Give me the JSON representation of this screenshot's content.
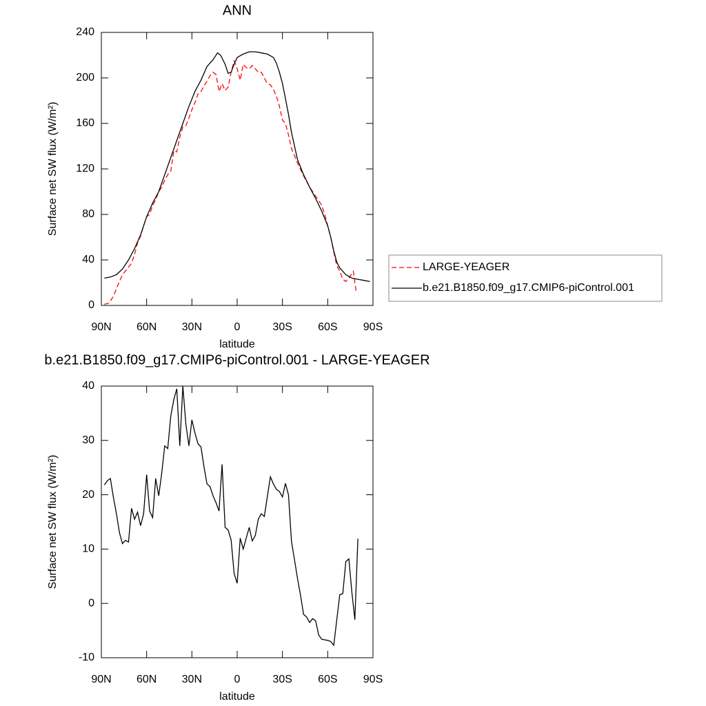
{
  "chart_data": [
    {
      "type": "line",
      "title": "ANN",
      "x_label": "latitude",
      "y_label": "Surface net SW flux (W/m²)",
      "xlim": [
        90,
        -90
      ],
      "ylim": [
        0,
        240
      ],
      "xticks": [
        {
          "value": 90,
          "label": "90N"
        },
        {
          "value": 60,
          "label": "60N"
        },
        {
          "value": 30,
          "label": "30N"
        },
        0,
        {
          "value": -30,
          "label": "30S"
        },
        {
          "value": -60,
          "label": "60S"
        },
        {
          "value": -90,
          "label": "90S"
        }
      ],
      "yticks": [
        0,
        40,
        80,
        120,
        160,
        200,
        240
      ],
      "legend": "right",
      "series": [
        {
          "name": "LARGE-YEAGER",
          "color": "#ff0000",
          "style": "dashed",
          "x": [
            88,
            85,
            82,
            79,
            76,
            73,
            70,
            68,
            66,
            64,
            62,
            60,
            58,
            56,
            54,
            52,
            50,
            48,
            46,
            44,
            42,
            40,
            38,
            36,
            34,
            32,
            30,
            28,
            26,
            24,
            22,
            20,
            18,
            16,
            14,
            12,
            10,
            8,
            6,
            4,
            2,
            0,
            -2,
            -4,
            -6,
            -8,
            -10,
            -12,
            -14,
            -16,
            -18,
            -20,
            -22,
            -24,
            -26,
            -28,
            -30,
            -32,
            -34,
            -36,
            -40,
            -44,
            -48,
            -52,
            -56,
            -58,
            -60,
            -62,
            -64,
            -66,
            -68,
            -70,
            -72,
            -74,
            -76,
            -77,
            -78,
            -79
          ],
          "values": [
            1,
            2,
            8,
            18,
            27,
            32,
            37,
            45,
            55,
            61,
            70,
            78,
            80,
            88,
            93,
            100,
            104,
            110,
            115,
            118,
            136,
            135,
            148,
            157,
            158,
            165,
            172,
            178,
            186,
            188,
            193,
            197,
            202,
            205,
            203,
            188,
            195,
            189,
            192,
            205,
            215,
            208,
            198,
            212,
            209,
            208,
            211,
            208,
            205,
            205,
            200,
            195,
            194,
            190,
            184,
            175,
            163,
            160,
            150,
            138,
            125,
            114,
            104,
            96,
            88,
            80,
            70,
            60,
            47,
            35,
            30,
            23,
            21,
            24,
            28,
            30,
            20,
            11
          ]
        },
        {
          "name": "b.e21.B1850.f09_g17.CMIP6-piControl.001",
          "color": "#000000",
          "style": "solid",
          "x": [
            88,
            84,
            80,
            76,
            72,
            68,
            64,
            60,
            56,
            52,
            48,
            44,
            40,
            36,
            32,
            28,
            24,
            20,
            16,
            13,
            11,
            8,
            6,
            4,
            2,
            0,
            -4,
            -8,
            -12,
            -16,
            -20,
            -24,
            -26,
            -28,
            -30,
            -32,
            -34,
            -36,
            -38,
            -40,
            -44,
            -48,
            -52,
            -56,
            -60,
            -62,
            -64,
            -66,
            -68,
            -72,
            -76,
            -80,
            -84,
            -88
          ],
          "values": [
            24,
            25,
            27,
            32,
            40,
            50,
            62,
            78,
            90,
            100,
            115,
            130,
            145,
            160,
            175,
            188,
            198,
            210,
            216,
            222,
            220,
            212,
            204,
            205,
            212,
            218,
            221,
            223,
            223,
            222,
            221,
            218,
            213,
            205,
            195,
            182,
            168,
            152,
            140,
            128,
            115,
            104,
            94,
            83,
            70,
            60,
            48,
            38,
            33,
            27,
            24,
            23,
            22,
            21
          ]
        }
      ]
    },
    {
      "type": "line",
      "title": "b.e21.B1850.f09_g17.CMIP6-piControl.001 - LARGE-YEAGER",
      "x_label": "latitude",
      "y_label": "Surface net SW flux (W/m²)",
      "xlim": [
        90,
        -90
      ],
      "ylim": [
        -10,
        40
      ],
      "xticks": [
        {
          "value": 90,
          "label": "90N"
        },
        {
          "value": 60,
          "label": "60N"
        },
        {
          "value": 30,
          "label": "30N"
        },
        0,
        {
          "value": -30,
          "label": "30S"
        },
        {
          "value": -60,
          "label": "60S"
        },
        {
          "value": -90,
          "label": "90S"
        }
      ],
      "yticks": [
        -10,
        0,
        10,
        20,
        30,
        40
      ],
      "series": [
        {
          "color": "#000000",
          "style": "solid",
          "x": [
            88,
            86,
            84,
            82,
            80,
            78,
            76,
            74,
            72,
            70,
            68,
            66,
            64,
            62,
            60,
            58,
            56,
            54,
            52,
            50,
            48,
            46,
            44,
            42,
            40,
            38,
            36,
            34,
            32,
            30,
            28,
            26,
            24,
            22,
            20,
            18,
            16,
            14,
            12,
            10,
            8,
            6,
            4,
            2,
            0,
            -2,
            -4,
            -6,
            -8,
            -10,
            -12,
            -14,
            -16,
            -18,
            -20,
            -22,
            -24,
            -26,
            -28,
            -30,
            -32,
            -34,
            -36,
            -38,
            -40,
            -42,
            -44,
            -46,
            -48,
            -50,
            -52,
            -54,
            -56,
            -58,
            -60,
            -62,
            -64,
            -66,
            -68,
            -70,
            -72,
            -74,
            -76,
            -78,
            -80
          ],
          "values": [
            21.8,
            22.6,
            23,
            19.5,
            16.5,
            13,
            11,
            11.6,
            11.3,
            17.5,
            15.5,
            16.8,
            14.3,
            16.5,
            23.7,
            17,
            15.8,
            23,
            19.8,
            24,
            29,
            28.5,
            34.5,
            37.5,
            39.5,
            29,
            40,
            33,
            29,
            33.8,
            31.4,
            29.4,
            28.8,
            25.2,
            22,
            21.5,
            19.8,
            18.5,
            17,
            25.6,
            14,
            13.5,
            11.7,
            5.5,
            3.7,
            12,
            10,
            12,
            14,
            11.5,
            12.5,
            15.5,
            16.5,
            16,
            19.7,
            23.3,
            22,
            21,
            20.6,
            19.6,
            22.1,
            20,
            11.4,
            8,
            4.5,
            1.5,
            -2,
            -2.5,
            -3.5,
            -2.8,
            -3.2,
            -5.8,
            -6.6,
            -6.7,
            -6.8,
            -7,
            -7.7,
            -3,
            1.6,
            1.8,
            7.7,
            8.2,
            2,
            -3,
            11.9
          ]
        }
      ]
    }
  ]
}
